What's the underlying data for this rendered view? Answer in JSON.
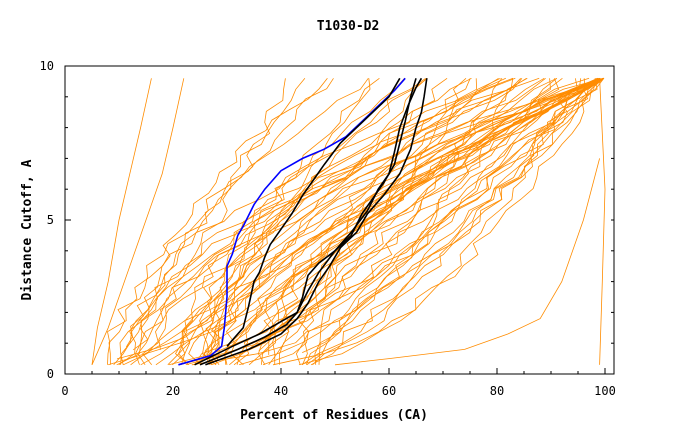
{
  "chart_data": {
    "type": "line",
    "title": "T1030-D2",
    "xlabel": "Percent of Residues (CA)",
    "ylabel": "Distance Cutoff, A",
    "xlim": [
      0,
      100
    ],
    "ylim": [
      0,
      10
    ],
    "x_ticks": [
      "0",
      "20",
      "40",
      "60",
      "80",
      "100"
    ],
    "y_ticks": [
      "0",
      "5",
      "10"
    ],
    "colors": {
      "background_series": "#ff8c00",
      "highlight_blue": "#0000ff",
      "highlight_black": "#000000"
    },
    "background_series_count": 70,
    "highlight_series": [
      {
        "color": "#0000ff",
        "points": [
          [
            21,
            0.3
          ],
          [
            27,
            0.6
          ],
          [
            29,
            0.9
          ],
          [
            29.5,
            1.5
          ],
          [
            30,
            2.5
          ],
          [
            30,
            3.5
          ],
          [
            31,
            3.9
          ],
          [
            32,
            4.5
          ],
          [
            33,
            4.8
          ],
          [
            35,
            5.5
          ],
          [
            37,
            6
          ],
          [
            40,
            6.6
          ],
          [
            44,
            7
          ],
          [
            48,
            7.3
          ],
          [
            52,
            7.7
          ],
          [
            55,
            8.2
          ],
          [
            58,
            8.7
          ],
          [
            61,
            9.2
          ],
          [
            63,
            9.6
          ]
        ]
      },
      {
        "color": "#000000",
        "points": [
          [
            24,
            0.3
          ],
          [
            31,
            0.9
          ],
          [
            36,
            1.3
          ],
          [
            40,
            1.7
          ],
          [
            43,
            2
          ],
          [
            44,
            2.5
          ],
          [
            45,
            3.2
          ],
          [
            47,
            3.6
          ],
          [
            50,
            4
          ],
          [
            53,
            4.5
          ],
          [
            55,
            5.2
          ],
          [
            57,
            5.7
          ],
          [
            59,
            6.2
          ],
          [
            61,
            6.8
          ],
          [
            62,
            7.5
          ],
          [
            63,
            8.2
          ],
          [
            64,
            9
          ],
          [
            65,
            9.6
          ]
        ]
      },
      {
        "color": "#000000",
        "points": [
          [
            25,
            0.3
          ],
          [
            32,
            0.8
          ],
          [
            37,
            1.2
          ],
          [
            41,
            1.6
          ],
          [
            43,
            2
          ],
          [
            45,
            2.7
          ],
          [
            47,
            3.3
          ],
          [
            50,
            4
          ],
          [
            53,
            4.6
          ],
          [
            56,
            5.3
          ],
          [
            58,
            6
          ],
          [
            60,
            6.5
          ],
          [
            61,
            7.2
          ],
          [
            62,
            8
          ],
          [
            63.5,
            8.7
          ],
          [
            65,
            9.3
          ],
          [
            66,
            9.6
          ]
        ]
      },
      {
        "color": "#000000",
        "points": [
          [
            26,
            0.3
          ],
          [
            34,
            0.8
          ],
          [
            40,
            1.3
          ],
          [
            43,
            1.8
          ],
          [
            45,
            2.3
          ],
          [
            47,
            3
          ],
          [
            49,
            3.5
          ],
          [
            51,
            4.1
          ],
          [
            54,
            4.6
          ],
          [
            56,
            5.2
          ],
          [
            59,
            5.8
          ],
          [
            62,
            6.5
          ],
          [
            64,
            7.3
          ],
          [
            65,
            8
          ],
          [
            66,
            8.5
          ],
          [
            66.5,
            9
          ],
          [
            67,
            9.6
          ]
        ]
      },
      {
        "color": "#000000",
        "points": [
          [
            30,
            0.9
          ],
          [
            33,
            1.5
          ],
          [
            34,
            2.2
          ],
          [
            35,
            3
          ],
          [
            36,
            3.3
          ],
          [
            37,
            3.8
          ],
          [
            38,
            4.2
          ],
          [
            40,
            4.7
          ],
          [
            42,
            5.2
          ],
          [
            44,
            5.8
          ],
          [
            46,
            6.3
          ],
          [
            48,
            6.8
          ],
          [
            51,
            7.5
          ],
          [
            54,
            8
          ],
          [
            57,
            8.5
          ],
          [
            60,
            9
          ],
          [
            62,
            9.6
          ]
        ]
      }
    ]
  }
}
